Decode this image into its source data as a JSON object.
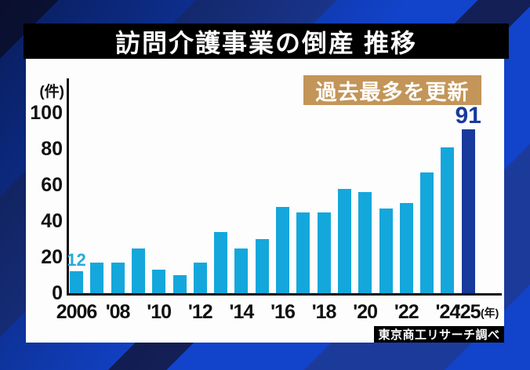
{
  "title_bar": {
    "label": "訪問介護事業の倒産 推移",
    "bg": "#000000",
    "text_color": "#ffffff"
  },
  "badge": {
    "label": "過去最多を更新",
    "bg": "#c39558",
    "text_color": "#ffffff"
  },
  "source": {
    "label": "東京商工リサーチ調べ",
    "bg": "#000000",
    "text_color": "#ffffff"
  },
  "background": {
    "stripe_bright": "#1243cb",
    "stripe_dark": "#1c3a9a",
    "stripe_darkest": "#131f55"
  },
  "chart_data": {
    "type": "bar",
    "title": "訪問介護事業の倒産 推移",
    "ylabel": "(件)",
    "xlabel_suffix": "(年)",
    "ylim": [
      0,
      100
    ],
    "y_ticks": [
      0,
      20,
      40,
      60,
      80,
      100
    ],
    "grid": false,
    "legend": "none",
    "years": [
      2006,
      2007,
      2008,
      2009,
      2010,
      2011,
      2012,
      2013,
      2014,
      2015,
      2016,
      2017,
      2018,
      2019,
      2020,
      2021,
      2022,
      2023,
      2024,
      2025
    ],
    "values": [
      12,
      17,
      17,
      25,
      13,
      10,
      17,
      34,
      25,
      30,
      48,
      45,
      45,
      58,
      56,
      47,
      50,
      67,
      81,
      91
    ],
    "x_ticks": [
      {
        "label": "2006",
        "bar": 0
      },
      {
        "label": "'08",
        "bar": 2
      },
      {
        "label": "'10",
        "bar": 4
      },
      {
        "label": "'12",
        "bar": 6
      },
      {
        "label": "'14",
        "bar": 8
      },
      {
        "label": "'16",
        "bar": 10
      },
      {
        "label": "'18",
        "bar": 12
      },
      {
        "label": "'20",
        "bar": 14
      },
      {
        "label": "'22",
        "bar": 16
      },
      {
        "label": "'24",
        "bar": 18
      },
      {
        "label": "'25",
        "bar": 19
      }
    ],
    "bar_color": "#14a7dc",
    "highlight_bar": 19,
    "highlight_color": "#173a9c",
    "annotations": [
      {
        "text": "12",
        "bar": 0,
        "color": "#2aa9da"
      },
      {
        "text": "91",
        "bar": 19,
        "color": "#173a9c"
      }
    ]
  }
}
